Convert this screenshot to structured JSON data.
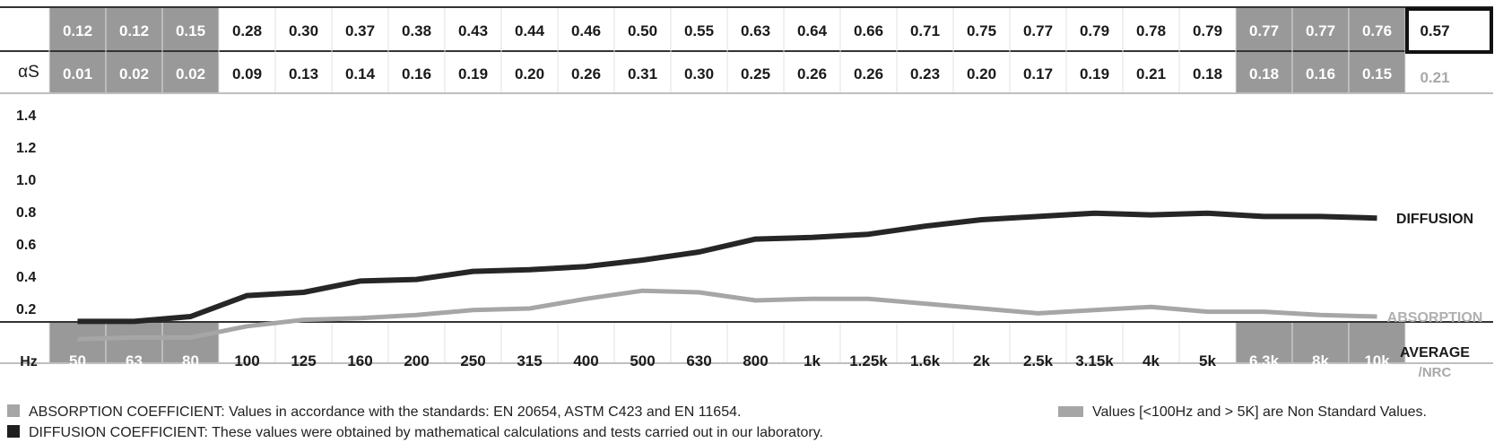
{
  "colors": {
    "nonstandard_bg": "#999999",
    "absorption": "#a6a6a6",
    "diffusion": "#262626",
    "text_dark": "#1a1a1a",
    "average_gray": "#a8a8a8"
  },
  "table": {
    "row2_label": "αS",
    "hz_label": "Hz",
    "average_label": "AVERAGE",
    "nrc_label": "/NRC",
    "diffusion_average": "0.57",
    "absorption_average": "0.21"
  },
  "legend": {
    "absorption_note": "ABSORPTION COEFFICIENT: Values in accordance with the standards: EN 20654, ASTM C423 and EN 11654.",
    "diffusion_note": "DIFFUSION COEFFICIENT: These values were obtained by mathematical calculations and tests carried out in our laboratory.",
    "nonstandard_note": "Values [<100Hz and > 5K] are Non Standard Values."
  },
  "chart_data": {
    "type": "line",
    "categories": [
      "50",
      "63",
      "80",
      "100",
      "125",
      "160",
      "200",
      "250",
      "315",
      "400",
      "500",
      "630",
      "800",
      "1k",
      "1.25k",
      "1.6k",
      "2k",
      "2.5k",
      "3.15k",
      "4k",
      "5k",
      "6.3k",
      "8k",
      "10k"
    ],
    "non_standard_indices": [
      0,
      1,
      2,
      21,
      22,
      23
    ],
    "series": [
      {
        "name": "DIFFUSION",
        "color": "#262626",
        "values": [
          0.12,
          0.12,
          0.15,
          0.28,
          0.3,
          0.37,
          0.38,
          0.43,
          0.44,
          0.46,
          0.5,
          0.55,
          0.63,
          0.64,
          0.66,
          0.71,
          0.75,
          0.77,
          0.79,
          0.78,
          0.79,
          0.77,
          0.77,
          0.76
        ],
        "labels": [
          "0.12",
          "0.12",
          "0.15",
          "0.28",
          "0.30",
          "0.37",
          "0.38",
          "0.43",
          "0.44",
          "0.46",
          "0.50",
          "0.55",
          "0.63",
          "0.64",
          "0.66",
          "0.71",
          "0.75",
          "0.77",
          "0.79",
          "0.78",
          "0.79",
          "0.77",
          "0.77",
          "0.76"
        ]
      },
      {
        "name": "ABSORPTION",
        "color": "#a6a6a6",
        "values": [
          0.01,
          0.02,
          0.02,
          0.09,
          0.13,
          0.14,
          0.16,
          0.19,
          0.2,
          0.26,
          0.31,
          0.3,
          0.25,
          0.26,
          0.26,
          0.23,
          0.2,
          0.17,
          0.19,
          0.21,
          0.18,
          0.18,
          0.16,
          0.15
        ],
        "labels": [
          "0.01",
          "0.02",
          "0.02",
          "0.09",
          "0.13",
          "0.14",
          "0.16",
          "0.19",
          "0.20",
          "0.26",
          "0.31",
          "0.30",
          "0.25",
          "0.26",
          "0.26",
          "0.23",
          "0.20",
          "0.17",
          "0.19",
          "0.21",
          "0.18",
          "0.18",
          "0.16",
          "0.15"
        ]
      }
    ],
    "y_ticks": [
      "0.2",
      "0.4",
      "0.6",
      "0.8",
      "1.0",
      "1.2",
      "1.4"
    ],
    "ylim": [
      0,
      1.4
    ],
    "grid": false,
    "xlabel": "Hz",
    "ylabel": ""
  }
}
